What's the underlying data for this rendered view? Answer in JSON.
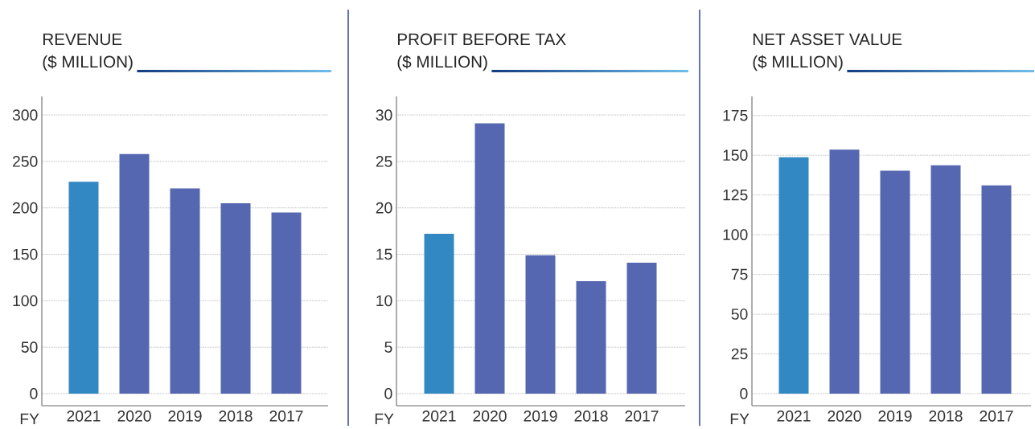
{
  "chart_data": [
    {
      "type": "bar",
      "title": "REVENUE",
      "subtitle": "($ MILLION)",
      "xlabel": "FY",
      "categories": [
        "2021",
        "2020",
        "2019",
        "2018",
        "2017"
      ],
      "values": [
        228,
        258,
        221,
        205,
        195
      ],
      "colors": [
        "#3288c2",
        "#5567b0",
        "#5567b0",
        "#5567b0",
        "#5567b0"
      ],
      "ylim": [
        -13,
        320
      ],
      "yticks": [
        0,
        50,
        100,
        150,
        200,
        250,
        300
      ],
      "grid": "y"
    },
    {
      "type": "bar",
      "title": "PROFIT BEFORE TAX",
      "subtitle": "($ MILLION)",
      "xlabel": "FY",
      "categories": [
        "2021",
        "2020",
        "2019",
        "2018",
        "2017"
      ],
      "values": [
        17.2,
        29.1,
        14.9,
        12.1,
        14.1
      ],
      "colors": [
        "#3288c2",
        "#5567b0",
        "#5567b0",
        "#5567b0",
        "#5567b0"
      ],
      "ylim": [
        -1.3,
        32
      ],
      "yticks": [
        0,
        5,
        10,
        15,
        20,
        25,
        30
      ],
      "grid": "y"
    },
    {
      "type": "bar",
      "title": "NET ASSET VALUE",
      "subtitle": "($ MILLION)",
      "xlabel": "FY",
      "categories": [
        "2021",
        "2020",
        "2019",
        "2018",
        "2017"
      ],
      "values": [
        148.7,
        153.5,
        140.2,
        143.6,
        131
      ],
      "colors": [
        "#3288c2",
        "#5567b0",
        "#5567b0",
        "#5567b0",
        "#5567b0"
      ],
      "ylim": [
        -7.6,
        187
      ],
      "yticks": [
        0,
        25,
        50,
        75,
        100,
        125,
        150,
        175
      ],
      "grid": "y"
    }
  ]
}
